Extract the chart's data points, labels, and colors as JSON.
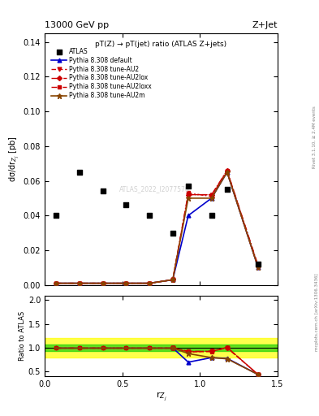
{
  "title_top": "13000 GeV pp",
  "title_right": "Z+Jet",
  "plot_title": "pT(Z) → pT(jet) ratio (ATLAS Z+jets)",
  "ylabel_main": "dσ/dr$_{Z_j}$ [pb]",
  "ylabel_ratio": "Ratio to ATLAS",
  "xlabel": "r$_{Z_j}$",
  "watermark": "ATLAS_2022_I2077570",
  "rivet_label": "Rivet 3.1.10, ≥ 2.4M events",
  "mcplots_label": "mcplots.cern.ch [arXiv:1306.3436]",
  "xlim": [
    0,
    1.5
  ],
  "ylim_main": [
    0,
    0.145
  ],
  "ylim_ratio": [
    0.4,
    2.1
  ],
  "yticks_main": [
    0,
    0.02,
    0.04,
    0.06,
    0.08,
    0.1,
    0.12,
    0.14
  ],
  "yticks_ratio": [
    0.5,
    1.0,
    1.5,
    2.0
  ],
  "xticks": [
    0,
    0.5,
    1.0,
    1.5
  ],
  "atlas_x": [
    0.075,
    0.225,
    0.375,
    0.525,
    0.675,
    0.825,
    0.925,
    1.075,
    1.175,
    1.375
  ],
  "atlas_y": [
    0.04,
    0.065,
    0.054,
    0.046,
    0.04,
    0.03,
    0.057,
    0.04,
    0.055,
    0.012
  ],
  "mc_x": [
    0.075,
    0.225,
    0.375,
    0.525,
    0.675,
    0.825,
    0.925,
    1.075,
    1.175,
    1.375
  ],
  "default_y": [
    0.001,
    0.001,
    0.001,
    0.001,
    0.001,
    0.003,
    0.04,
    0.05,
    0.065,
    0.01
  ],
  "au2_y": [
    0.001,
    0.001,
    0.001,
    0.001,
    0.001,
    0.003,
    0.052,
    0.052,
    0.065,
    0.01
  ],
  "au2lox_y": [
    0.001,
    0.001,
    0.001,
    0.001,
    0.001,
    0.003,
    0.052,
    0.052,
    0.066,
    0.011
  ],
  "au2loxx_y": [
    0.001,
    0.001,
    0.001,
    0.001,
    0.001,
    0.003,
    0.053,
    0.051,
    0.066,
    0.011
  ],
  "au2m_y": [
    0.001,
    0.001,
    0.001,
    0.001,
    0.001,
    0.003,
    0.05,
    0.05,
    0.065,
    0.01
  ],
  "ratio_x": [
    0.825,
    0.925,
    1.075,
    1.175,
    1.375
  ],
  "default_ratio": [
    1.0,
    0.7,
    0.795,
    0.78,
    0.44
  ],
  "au2_ratio": [
    1.0,
    0.91,
    0.93,
    1.0,
    0.44
  ],
  "au2lox_ratio": [
    1.0,
    0.92,
    0.93,
    1.01,
    0.44
  ],
  "au2loxx_ratio": [
    1.0,
    0.93,
    0.92,
    1.01,
    0.44
  ],
  "au2m_ratio": [
    1.0,
    0.88,
    0.795,
    0.77,
    0.44
  ],
  "ratio_flat_x": [
    0.075,
    0.225,
    0.375,
    0.525,
    0.675,
    0.825
  ],
  "ratio_flat_y": [
    1.0,
    1.0,
    1.0,
    1.0,
    1.0,
    1.0
  ],
  "color_default": "#0000cc",
  "color_au2": "#cc0000",
  "color_au2lox": "#cc0000",
  "color_au2loxx": "#cc0000",
  "color_au2m": "#884400",
  "green_band_inner": [
    0.93,
    1.07
  ],
  "yellow_band_outer": [
    0.8,
    1.2
  ]
}
